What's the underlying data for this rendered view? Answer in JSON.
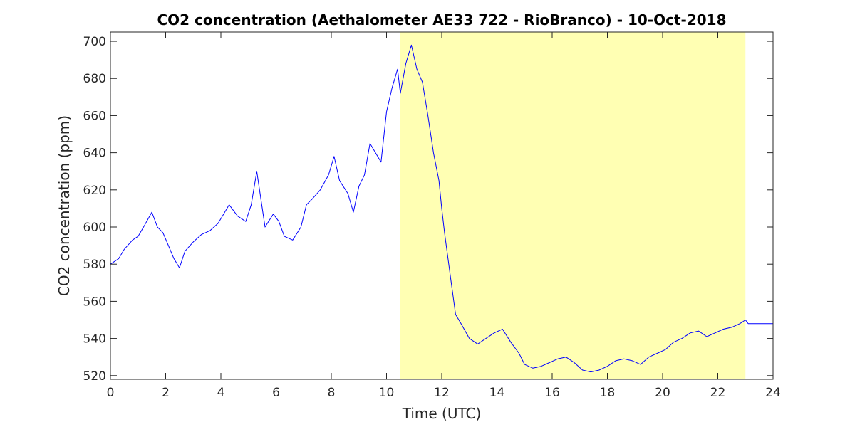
{
  "chart_data": {
    "type": "line",
    "title": "CO2 concentration (Aethalometer AE33 722 - RioBranco) - 10-Oct-2018",
    "xlabel": "Time (UTC)",
    "ylabel": "CO2 concentration (ppm)",
    "xlim": [
      0,
      24
    ],
    "ylim": [
      518,
      705
    ],
    "xticks": [
      0,
      2,
      4,
      6,
      8,
      10,
      12,
      14,
      16,
      18,
      20,
      22,
      24
    ],
    "yticks": [
      520,
      540,
      560,
      580,
      600,
      620,
      640,
      660,
      680,
      700
    ],
    "grid": false,
    "line_color": "#0000ff",
    "highlight": {
      "x_start": 10.5,
      "x_end": 23.0,
      "color": "#ffffb3"
    },
    "series": [
      {
        "x": [
          0.0,
          0.3,
          0.5,
          0.8,
          1.0,
          1.2,
          1.5,
          1.7,
          1.9,
          2.1,
          2.3,
          2.5,
          2.7,
          3.0,
          3.3,
          3.6,
          3.9,
          4.1,
          4.3,
          4.6,
          4.9,
          5.1,
          5.3,
          5.6,
          5.9,
          6.1,
          6.3,
          6.6,
          6.9,
          7.1,
          7.3,
          7.6,
          7.9,
          8.1,
          8.3,
          8.6,
          8.8,
          9.0,
          9.2,
          9.4,
          9.6,
          9.8,
          10.0,
          10.2,
          10.4,
          10.5,
          10.7,
          10.9,
          11.1,
          11.3,
          11.5,
          11.7,
          11.9,
          12.0,
          12.1,
          12.3,
          12.5,
          12.7,
          13.0,
          13.3,
          13.6,
          13.9,
          14.2,
          14.5,
          14.8,
          15.0,
          15.3,
          15.6,
          15.9,
          16.2,
          16.5,
          16.8,
          17.1,
          17.4,
          17.7,
          18.0,
          18.3,
          18.6,
          18.9,
          19.2,
          19.5,
          19.8,
          20.1,
          20.4,
          20.7,
          21.0,
          21.3,
          21.6,
          21.9,
          22.2,
          22.5,
          22.8,
          23.0,
          23.1,
          24.0
        ],
        "y": [
          580,
          583,
          588,
          593,
          595,
          600,
          608,
          600,
          597,
          590,
          583,
          578,
          587,
          592,
          596,
          598,
          602,
          607,
          612,
          606,
          603,
          612,
          630,
          600,
          607,
          603,
          595,
          593,
          600,
          612,
          615,
          620,
          628,
          638,
          625,
          618,
          608,
          622,
          628,
          645,
          640,
          635,
          662,
          675,
          685,
          672,
          688,
          698,
          685,
          678,
          660,
          640,
          625,
          610,
          597,
          575,
          553,
          548,
          540,
          537,
          540,
          543,
          545,
          538,
          532,
          526,
          524,
          525,
          527,
          529,
          530,
          527,
          523,
          522,
          523,
          525,
          528,
          529,
          528,
          526,
          530,
          532,
          534,
          538,
          540,
          543,
          544,
          541,
          543,
          545,
          546,
          548,
          550,
          548,
          548
        ]
      }
    ]
  }
}
